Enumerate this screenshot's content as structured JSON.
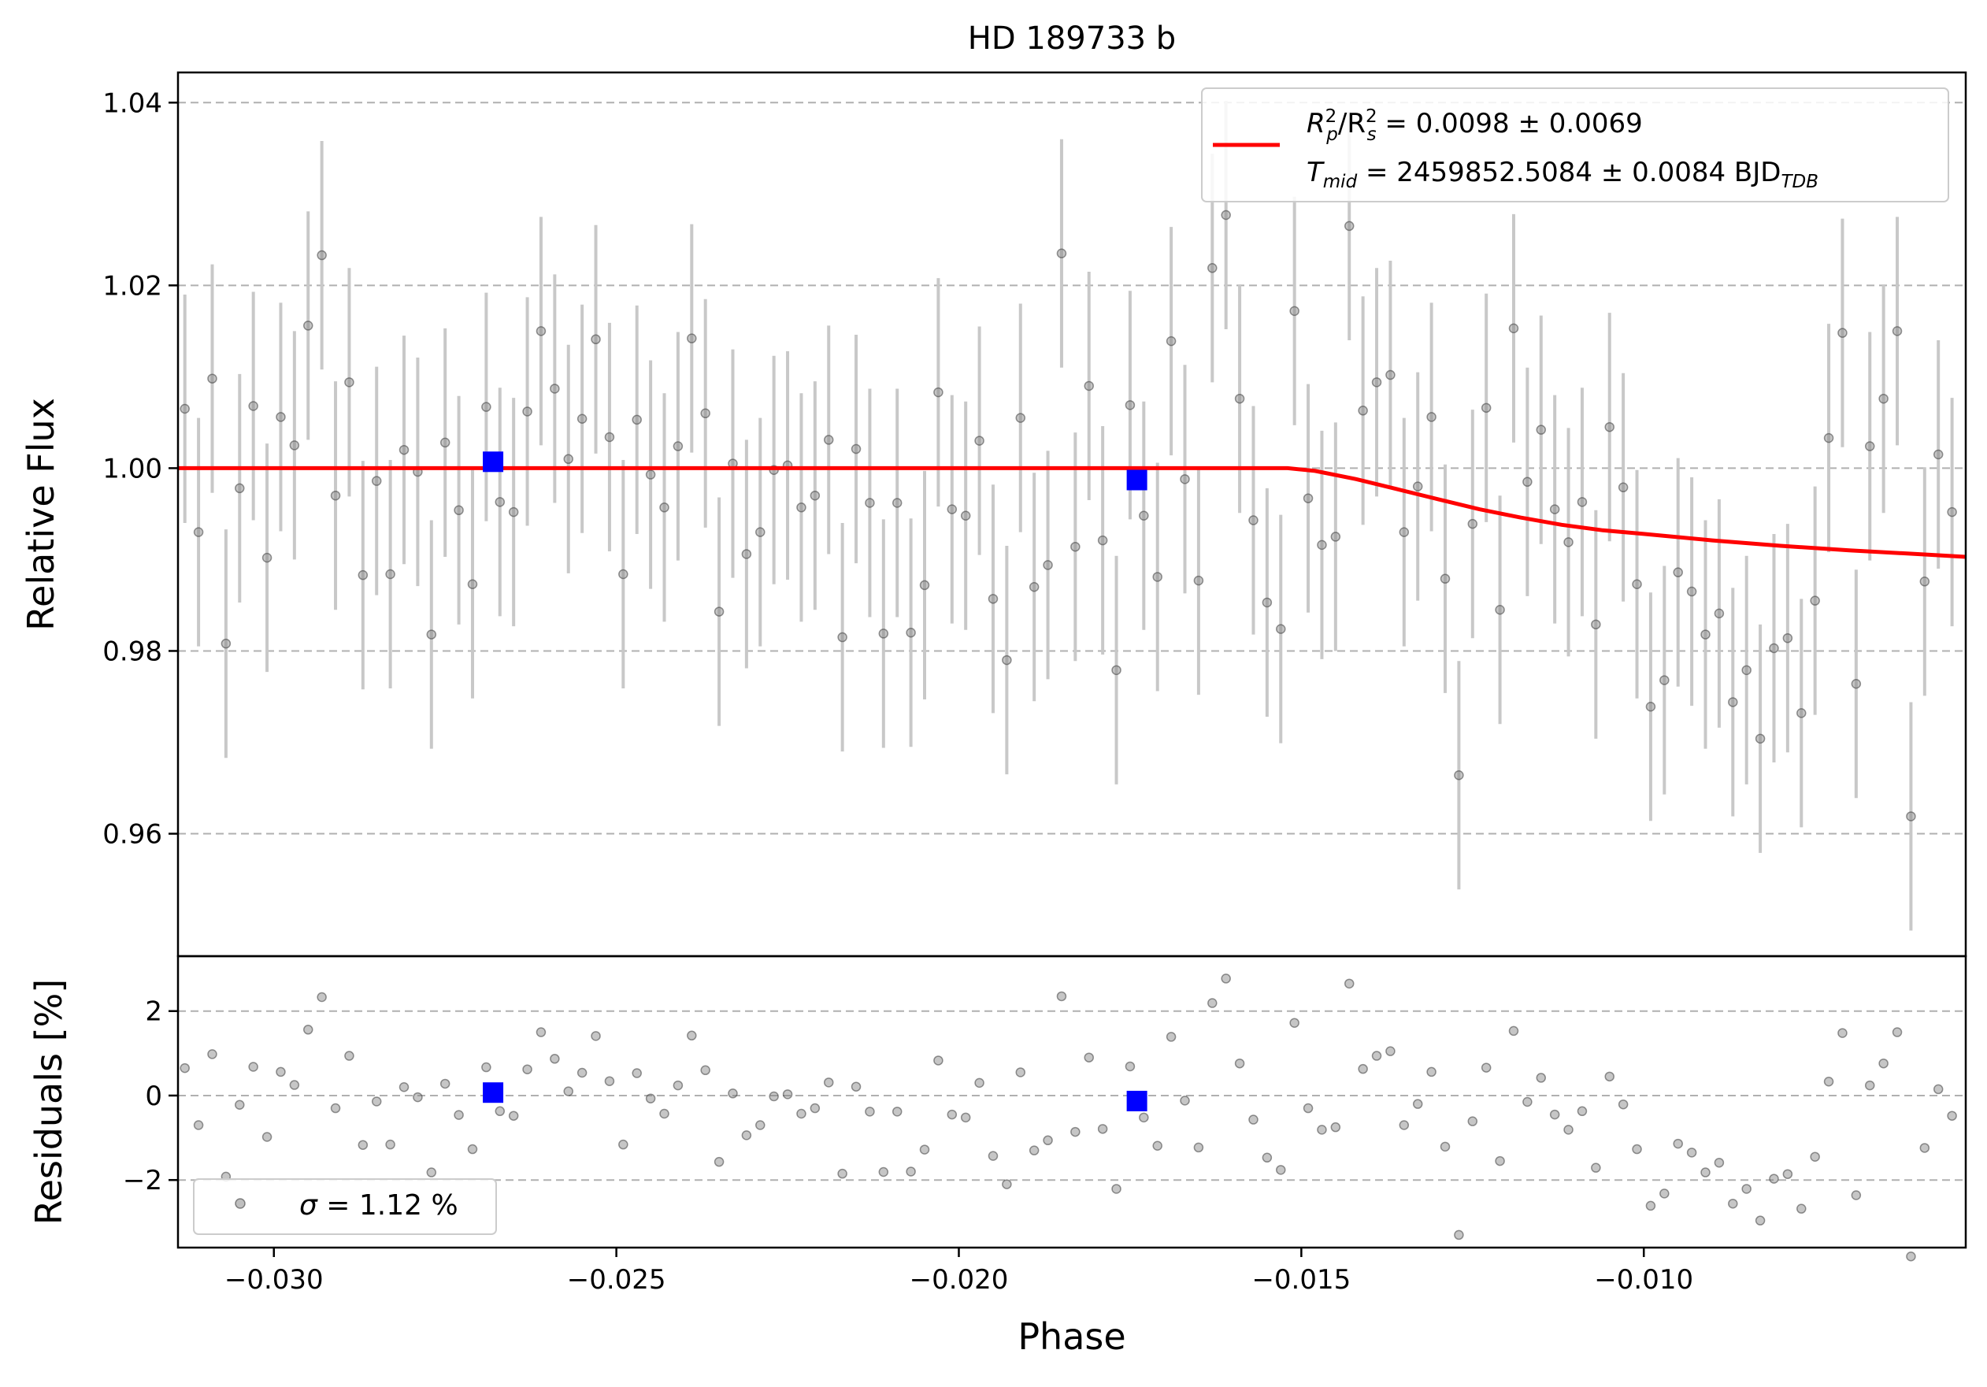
{
  "chart_data": [
    {
      "type": "scatter",
      "title": "HD 189733 b",
      "xlabel": "",
      "ylabel": "Relative Flux",
      "xlim": [
        -0.0314,
        -0.0053
      ],
      "ylim": [
        0.9466,
        1.0433
      ],
      "grid": "horizontal-dashed",
      "legend_position": "top-right",
      "yticks": [
        {
          "value": 0.96,
          "label": "0.96"
        },
        {
          "value": 0.98,
          "label": "0.98"
        },
        {
          "value": 1.0,
          "label": "1.00"
        },
        {
          "value": 1.02,
          "label": "1.02"
        },
        {
          "value": 1.04,
          "label": "1.04"
        }
      ],
      "legend": {
        "line1": {
          "prefix": "R",
          "sub1": "p",
          "sup1": "2",
          "mid": "/R",
          "sub2": "s",
          "sup2": "2",
          "suffix": " = 0.0098 ± 0.0069"
        },
        "line2": {
          "prefix": "T",
          "sub1": "mid",
          "suffix": " = 2459852.5084 ± 0.0084 BJD",
          "sub2": "TDB"
        }
      },
      "model": {
        "name": "transit model",
        "color": "#ff0000",
        "x": [
          -0.0314,
          -0.0152,
          -0.0148,
          -0.0142,
          -0.0136,
          -0.013,
          -0.0124,
          -0.0118,
          -0.0112,
          -0.0106,
          -0.01,
          -0.009,
          -0.008,
          -0.007,
          -0.006,
          -0.0053
        ],
        "y": [
          1.0,
          1.0,
          0.9997,
          0.9988,
          0.9977,
          0.9966,
          0.9955,
          0.9946,
          0.9938,
          0.9932,
          0.9928,
          0.9921,
          0.9915,
          0.991,
          0.9906,
          0.9903
        ]
      },
      "series": [
        {
          "name": "data",
          "color": "#808080",
          "x": [
            -0.0313,
            -0.0311,
            -0.0309,
            -0.0307,
            -0.0305,
            -0.0303,
            -0.0301,
            -0.0299,
            -0.0297,
            -0.0295,
            -0.0293,
            -0.0291,
            -0.0289,
            -0.0287,
            -0.0285,
            -0.0283,
            -0.0281,
            -0.0279,
            -0.0277,
            -0.0275,
            -0.0273,
            -0.0271,
            -0.0269,
            -0.0267,
            -0.0265,
            -0.0263,
            -0.0261,
            -0.0259,
            -0.0257,
            -0.0255,
            -0.0253,
            -0.0251,
            -0.0249,
            -0.0247,
            -0.0245,
            -0.0243,
            -0.0241,
            -0.0239,
            -0.0237,
            -0.0235,
            -0.0233,
            -0.0231,
            -0.0229,
            -0.0227,
            -0.0225,
            -0.0223,
            -0.0221,
            -0.0219,
            -0.0217,
            -0.0215,
            -0.0213,
            -0.0211,
            -0.0209,
            -0.0207,
            -0.0205,
            -0.0203,
            -0.0201,
            -0.0199,
            -0.0197,
            -0.0195,
            -0.0193,
            -0.0191,
            -0.0189,
            -0.0187,
            -0.0185,
            -0.0183,
            -0.0181,
            -0.0179,
            -0.0177,
            -0.0175,
            -0.0173,
            -0.0171,
            -0.0169,
            -0.0167,
            -0.0165,
            -0.0163,
            -0.0161,
            -0.0159,
            -0.0157,
            -0.0155,
            -0.0153,
            -0.0151,
            -0.0149,
            -0.0147,
            -0.0145,
            -0.0143,
            -0.0141,
            -0.0139,
            -0.0137,
            -0.0135,
            -0.0133,
            -0.0131,
            -0.0129,
            -0.0127,
            -0.0125,
            -0.0123,
            -0.0121,
            -0.0119,
            -0.0117,
            -0.0115,
            -0.0113,
            -0.0111,
            -0.0109,
            -0.0107,
            -0.0105,
            -0.0103,
            -0.0101,
            -0.0099,
            -0.0097,
            -0.0095,
            -0.0093,
            -0.0091,
            -0.0089,
            -0.0087,
            -0.0085,
            -0.0083,
            -0.0081,
            -0.0079,
            -0.0077,
            -0.0075,
            -0.0073,
            -0.0071,
            -0.0069,
            -0.0067,
            -0.0065,
            -0.0063,
            -0.0061,
            -0.0059,
            -0.0057,
            -0.0055
          ],
          "y": [
            1.0065,
            0.993,
            1.0098,
            0.9808,
            0.9978,
            1.0068,
            0.9902,
            1.0056,
            1.0025,
            1.0156,
            1.0233,
            0.997,
            1.0094,
            0.9883,
            0.9986,
            0.9884,
            1.002,
            0.9996,
            0.9818,
            1.0028,
            0.9954,
            0.9873,
            1.0067,
            0.9963,
            0.9952,
            1.0062,
            1.015,
            1.0087,
            1.001,
            1.0054,
            1.0141,
            1.0034,
            0.9884,
            1.0053,
            0.9993,
            0.9957,
            1.0024,
            1.0142,
            1.006,
            0.9843,
            1.0005,
            0.9906,
            0.993,
            0.9998,
            1.0003,
            0.9957,
            0.997,
            1.0031,
            0.9815,
            1.0021,
            0.9962,
            0.9819,
            0.9962,
            0.982,
            0.9872,
            1.0083,
            0.9955,
            0.9948,
            1.003,
            0.9857,
            0.979,
            1.0055,
            0.987,
            0.9894,
            1.0235,
            0.9914,
            1.009,
            0.9921,
            0.9779,
            1.0069,
            0.9948,
            0.9881,
            1.0139,
            0.9988,
            0.9877,
            1.0219,
            1.0277,
            1.0076,
            0.9943,
            0.9853,
            0.9824,
            1.0172,
            0.9967,
            0.9916,
            0.9925,
            1.0265,
            1.0063,
            1.0094,
            1.0102,
            0.993,
            0.998,
            1.0056,
            0.9879,
            0.9664,
            0.9939,
            1.0066,
            0.9845,
            1.0153,
            0.9985,
            1.0042,
            0.9955,
            0.9919,
            0.9963,
            0.9829,
            1.0045,
            0.9979,
            0.9873,
            0.9739,
            0.9768,
            0.9886,
            0.9865,
            0.9818,
            0.9841,
            0.9744,
            0.9779,
            0.9704,
            0.9803,
            0.9814,
            0.9732,
            0.9855,
            1.0033,
            1.0148,
            0.9764,
            1.0024,
            1.0076,
            1.015,
            0.9619,
            0.9876,
            1.0015,
            0.9952
          ],
          "yerr": 0.0125
        },
        {
          "name": "binned",
          "color": "#0000ff",
          "x": [
            -0.0268,
            -0.0174
          ],
          "y": [
            1.0007,
            0.9987
          ]
        }
      ]
    },
    {
      "type": "scatter",
      "title": "",
      "xlabel": "Phase",
      "ylabel": "Residuals [%]",
      "xlim": [
        -0.0314,
        -0.0053
      ],
      "ylim": [
        -3.6,
        3.3
      ],
      "grid": "horizontal-dashed",
      "legend_position": "bottom-left",
      "yticks": [
        {
          "value": -2,
          "label": "−2"
        },
        {
          "value": 0,
          "label": "0"
        },
        {
          "value": 2,
          "label": "2"
        }
      ],
      "xticks": [
        {
          "value": -0.03,
          "label": "−0.030"
        },
        {
          "value": -0.025,
          "label": "−0.025"
        },
        {
          "value": -0.02,
          "label": "−0.020"
        },
        {
          "value": -0.015,
          "label": "−0.015"
        },
        {
          "value": -0.01,
          "label": "−0.010"
        }
      ],
      "legend": {
        "sigma_symbol": "σ",
        "text": " = 1.12 %"
      },
      "series": [
        {
          "name": "residuals",
          "color": "#808080",
          "x": [
            -0.0313,
            -0.0311,
            -0.0309,
            -0.0307,
            -0.0305,
            -0.0303,
            -0.0301,
            -0.0299,
            -0.0297,
            -0.0295,
            -0.0293,
            -0.0291,
            -0.0289,
            -0.0287,
            -0.0285,
            -0.0283,
            -0.0281,
            -0.0279,
            -0.0277,
            -0.0275,
            -0.0273,
            -0.0271,
            -0.0269,
            -0.0267,
            -0.0265,
            -0.0263,
            -0.0261,
            -0.0259,
            -0.0257,
            -0.0255,
            -0.0253,
            -0.0251,
            -0.0249,
            -0.0247,
            -0.0245,
            -0.0243,
            -0.0241,
            -0.0239,
            -0.0237,
            -0.0235,
            -0.0233,
            -0.0231,
            -0.0229,
            -0.0227,
            -0.0225,
            -0.0223,
            -0.0221,
            -0.0219,
            -0.0217,
            -0.0215,
            -0.0213,
            -0.0211,
            -0.0209,
            -0.0207,
            -0.0205,
            -0.0203,
            -0.0201,
            -0.0199,
            -0.0197,
            -0.0195,
            -0.0193,
            -0.0191,
            -0.0189,
            -0.0187,
            -0.0185,
            -0.0183,
            -0.0181,
            -0.0179,
            -0.0177,
            -0.0175,
            -0.0173,
            -0.0171,
            -0.0169,
            -0.0167,
            -0.0165,
            -0.0163,
            -0.0161,
            -0.0159,
            -0.0157,
            -0.0155,
            -0.0153,
            -0.0151,
            -0.0149,
            -0.0147,
            -0.0145,
            -0.0143,
            -0.0141,
            -0.0139,
            -0.0137,
            -0.0135,
            -0.0133,
            -0.0131,
            -0.0129,
            -0.0127,
            -0.0125,
            -0.0123,
            -0.0121,
            -0.0119,
            -0.0117,
            -0.0115,
            -0.0113,
            -0.0111,
            -0.0109,
            -0.0107,
            -0.0105,
            -0.0103,
            -0.0101,
            -0.0099,
            -0.0097,
            -0.0095,
            -0.0093,
            -0.0091,
            -0.0089,
            -0.0087,
            -0.0085,
            -0.0083,
            -0.0081,
            -0.0079,
            -0.0077,
            -0.0075,
            -0.0073,
            -0.0071,
            -0.0069,
            -0.0067,
            -0.0065,
            -0.0063,
            -0.0061,
            -0.0059,
            -0.0057,
            -0.0055
          ],
          "y": [
            0.65,
            -0.7,
            0.98,
            -1.92,
            -0.22,
            0.68,
            -0.98,
            0.56,
            0.25,
            1.56,
            2.33,
            -0.3,
            0.94,
            -1.17,
            -0.14,
            -1.16,
            0.2,
            -0.04,
            -1.82,
            0.28,
            -0.46,
            -1.27,
            0.67,
            -0.37,
            -0.48,
            0.62,
            1.5,
            0.87,
            0.1,
            0.54,
            1.41,
            0.34,
            -1.16,
            0.53,
            -0.07,
            -0.43,
            0.24,
            1.42,
            0.6,
            -1.57,
            0.05,
            -0.94,
            -0.7,
            -0.02,
            0.03,
            -0.43,
            -0.3,
            0.31,
            -1.85,
            0.21,
            -0.38,
            -1.81,
            -0.38,
            -1.8,
            -1.28,
            0.83,
            -0.45,
            -0.52,
            0.3,
            -1.43,
            -2.1,
            0.55,
            -1.3,
            -1.06,
            2.35,
            -0.86,
            0.9,
            -0.79,
            -2.21,
            0.69,
            -0.52,
            -1.19,
            1.39,
            -0.12,
            -1.23,
            2.19,
            2.77,
            0.76,
            -0.57,
            -1.47,
            -1.76,
            1.72,
            -0.3,
            -0.81,
            -0.75,
            2.65,
            0.63,
            0.94,
            1.05,
            -0.7,
            -0.2,
            0.56,
            -1.21,
            -3.3,
            -0.61,
            0.66,
            -1.55,
            1.53,
            -0.15,
            0.42,
            -0.45,
            -0.81,
            -0.37,
            -1.71,
            0.45,
            -0.21,
            -1.27,
            -2.61,
            -2.32,
            -1.14,
            -1.35,
            -1.82,
            -1.59,
            -2.56,
            -2.21,
            -2.96,
            -1.97,
            -1.86,
            -2.68,
            -1.45,
            0.33,
            1.48,
            -2.36,
            0.24,
            0.76,
            1.5,
            -3.81,
            -1.24,
            0.15,
            -0.48
          ]
        },
        {
          "name": "binned residuals",
          "color": "#0000ff",
          "x": [
            -0.0268,
            -0.0174
          ],
          "y": [
            0.07,
            -0.13
          ]
        }
      ]
    }
  ]
}
